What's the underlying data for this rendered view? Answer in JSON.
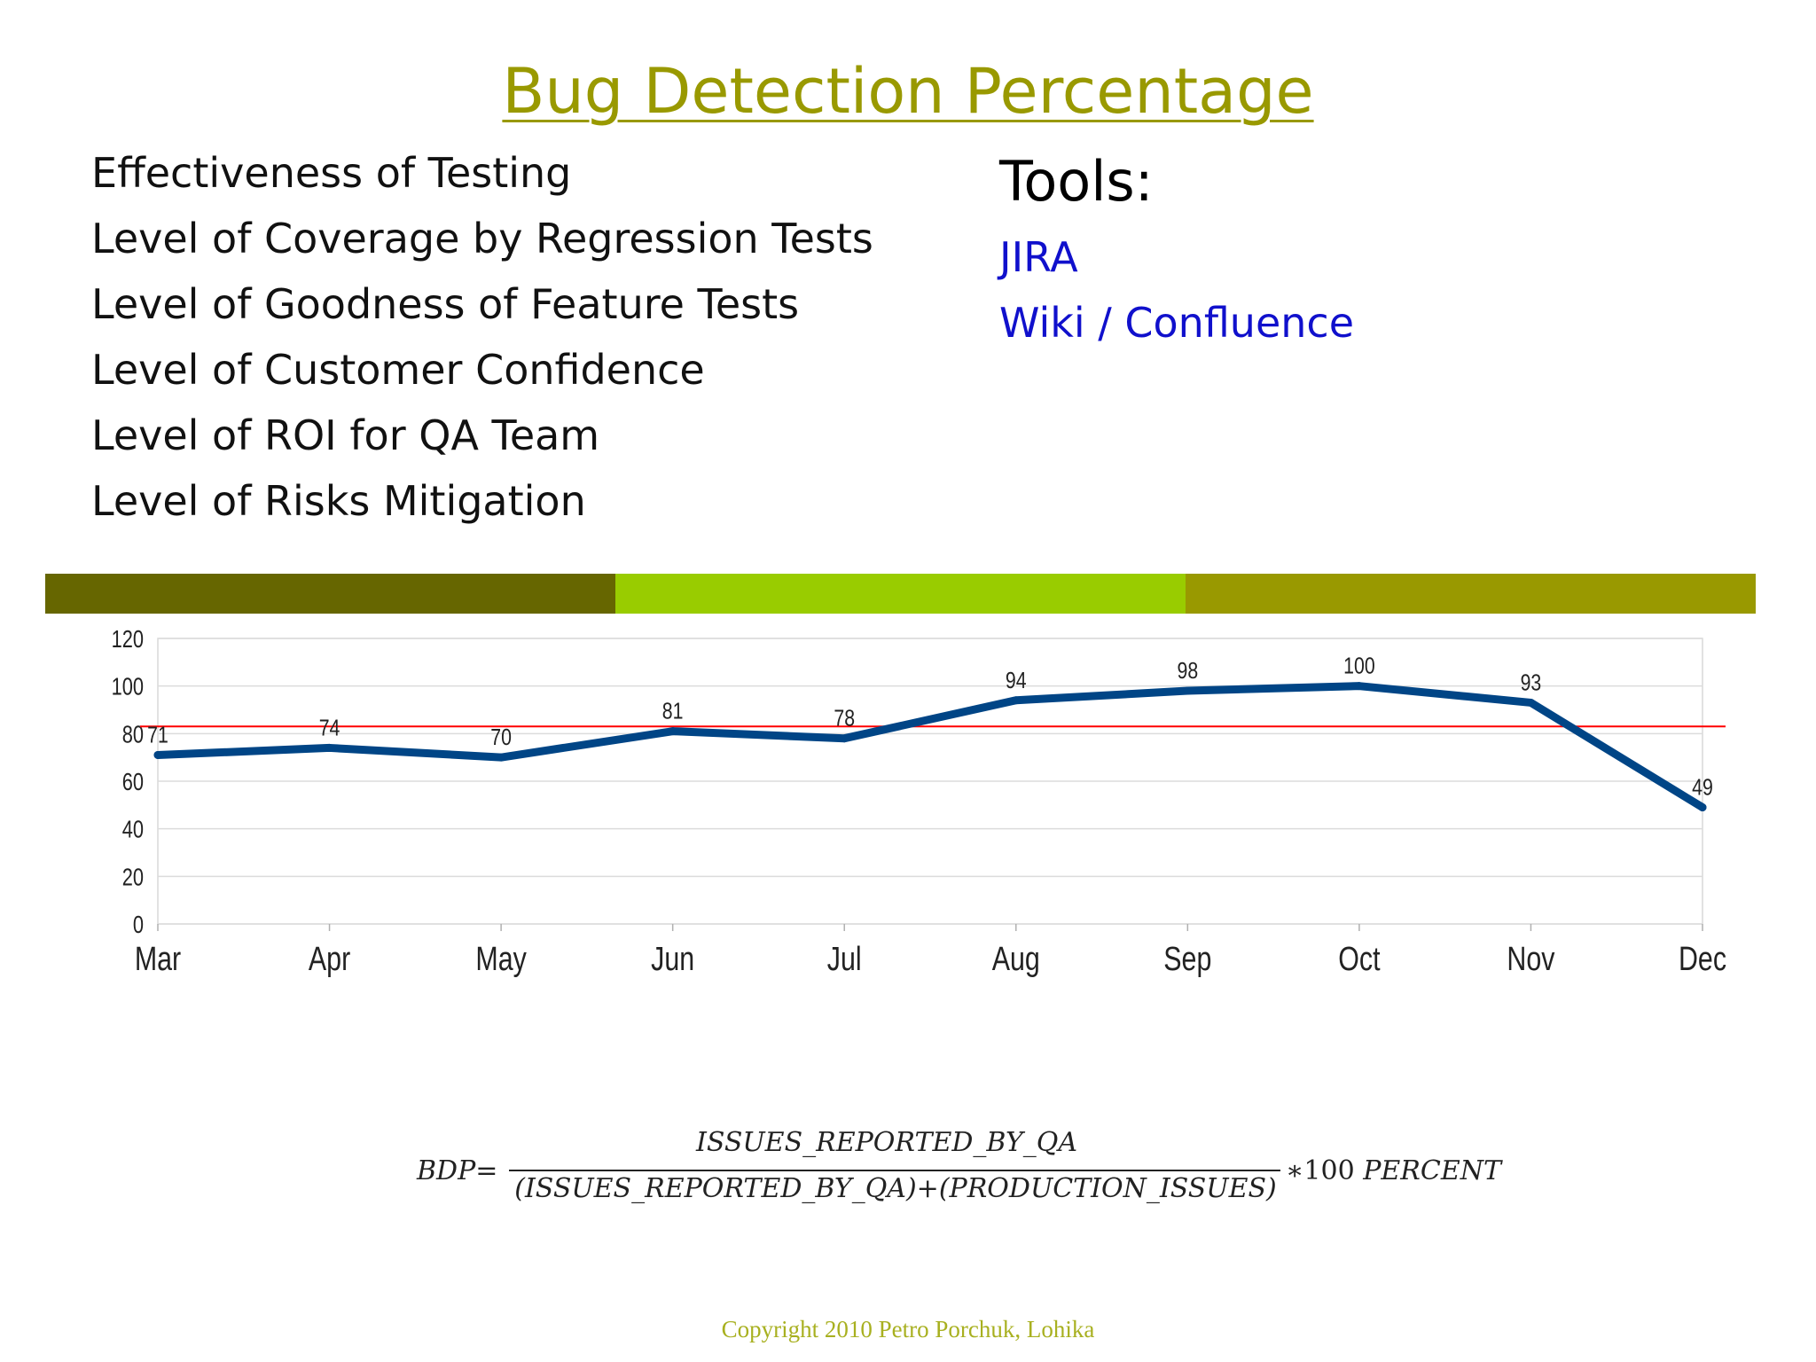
{
  "title": "Bug Detection Percentage",
  "bullets": [
    "Effectiveness of Testing",
    "Level of Coverage by Regression Tests",
    "Level of Goodness of Feature Tests",
    "Level of Customer Confidence",
    "Level of ROI for QA Team",
    "Level of Risks Mitigation"
  ],
  "tools": {
    "heading": "Tools:",
    "items": [
      "JIRA",
      "Wiki / Confluence"
    ]
  },
  "band_colors": [
    "#666600",
    "#99cc00",
    "#999900"
  ],
  "chart_data": {
    "type": "line",
    "title": "",
    "xlabel": "",
    "ylabel": "",
    "categories": [
      "Mar",
      "Apr",
      "May",
      "Jun",
      "Jul",
      "Aug",
      "Sep",
      "Oct",
      "Nov",
      "Dec"
    ],
    "series": [
      {
        "name": "BDP",
        "values": [
          71,
          74,
          70,
          81,
          78,
          94,
          98,
          100,
          93,
          49
        ],
        "color": "#004586"
      }
    ],
    "threshold": {
      "value": 83,
      "color": "#ff0000"
    },
    "yticks": [
      0,
      20,
      40,
      60,
      80,
      100,
      120
    ],
    "ylim": [
      0,
      120
    ],
    "grid": true,
    "legend": "none"
  },
  "formula": {
    "lhs": "BDP=",
    "numerator": "ISSUES_REPORTED_BY_QA",
    "denominator": "(ISSUES_REPORTED_BY_QA)+(PRODUCTION_ISSUES)",
    "times": "∗",
    "factor": "100",
    "unit": "PERCENT"
  },
  "copyright": "Copyright 2010 Petro Porchuk, Lohika"
}
